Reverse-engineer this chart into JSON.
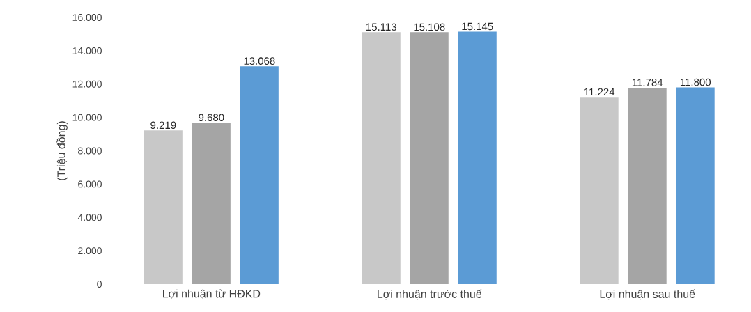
{
  "chart_data": {
    "type": "bar",
    "ylabel": "(Triệu đồng)",
    "categories": [
      "Lợi nhuận từ HĐKD",
      "Lợi nhuận trước thuế",
      "Lợi nhuận sau thuế"
    ],
    "series": [
      {
        "color": "#c8c8c8",
        "values": [
          9219,
          15113,
          11224
        ],
        "value_labels": [
          "9.219",
          "15.113",
          "11.224"
        ]
      },
      {
        "color": "#a5a5a5",
        "values": [
          9680,
          15108,
          11784
        ],
        "value_labels": [
          "9.680",
          "15.108",
          "11.784"
        ]
      },
      {
        "color": "#5b9bd5",
        "values": [
          13068,
          15145,
          11800
        ],
        "value_labels": [
          "13.068",
          "15.145",
          "11.800"
        ]
      }
    ],
    "ylim": [
      0,
      16000
    ],
    "yticks": [
      {
        "value": 0,
        "label": "0"
      },
      {
        "value": 2000,
        "label": "2.000"
      },
      {
        "value": 4000,
        "label": "4.000"
      },
      {
        "value": 6000,
        "label": "6.000"
      },
      {
        "value": 8000,
        "label": "8.000"
      },
      {
        "value": 10000,
        "label": "10.000"
      },
      {
        "value": 12000,
        "label": "12.000"
      },
      {
        "value": 14000,
        "label": "14.000"
      },
      {
        "value": 16000,
        "label": "16.000"
      }
    ],
    "grid": false
  }
}
